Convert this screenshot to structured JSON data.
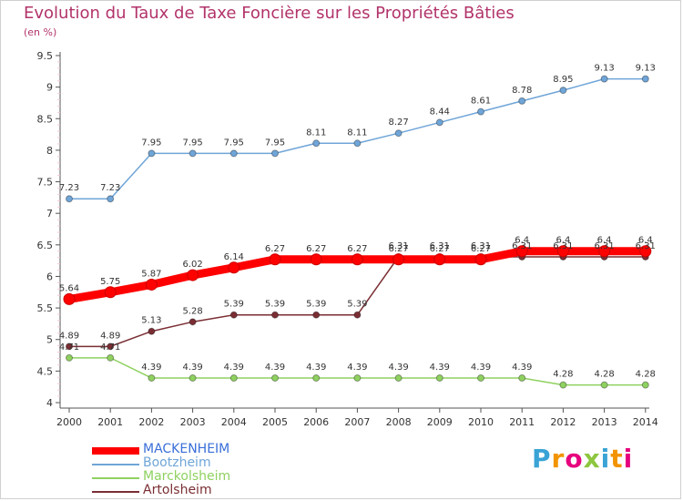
{
  "header": {
    "title": "Evolution du Taux de Taxe Foncière sur les Propriétés Bâties",
    "unit": "(en %)"
  },
  "logo": {
    "text": "Proxiti",
    "colors": [
      "#3aa3d6",
      "#f29400",
      "#e6007e",
      "#8dc63f",
      "#3aa3d6",
      "#f29400",
      "#e6007e"
    ]
  },
  "colors": {
    "title": "#b2336a",
    "axis": "#555555",
    "grid": "#f0c8d8"
  },
  "chart_data": {
    "type": "line",
    "title": "Evolution du Taux de Taxe Foncière sur les Propriétés Bâties",
    "ylabel": "(en %)",
    "xlabel": "",
    "x": [
      "2000",
      "2001",
      "2002",
      "2003",
      "2004",
      "2005",
      "2006",
      "2007",
      "2008",
      "2009",
      "2010",
      "2011",
      "2012",
      "2013",
      "2014"
    ],
    "ylim": [
      4,
      9.5
    ],
    "yticks": [
      "4",
      "4.5",
      "5",
      "5.5",
      "6",
      "6.5",
      "7",
      "7.5",
      "8",
      "8.5",
      "9",
      "9.5"
    ],
    "grid": false,
    "legend": "bottom-left",
    "series": [
      {
        "name": "MACKENHEIM",
        "color": "#ff0000",
        "values": [
          5.64,
          5.75,
          5.87,
          6.02,
          6.14,
          6.27,
          6.27,
          6.27,
          6.27,
          6.27,
          6.27,
          6.4,
          6.4,
          6.4,
          6.4
        ],
        "labels": [
          "5.64",
          "5.75",
          "5.87",
          "6.02",
          "6.14",
          "6.27",
          "6.27",
          "6.27",
          "6.27",
          "6.27",
          "6.27",
          "6.4",
          "6.4",
          "6.4",
          "6.4"
        ]
      },
      {
        "name": "Bootzheim",
        "color": "#6fa5d8",
        "values": [
          7.23,
          7.23,
          7.95,
          7.95,
          7.95,
          7.95,
          8.11,
          8.11,
          8.27,
          8.44,
          8.61,
          8.78,
          8.95,
          9.13,
          9.13
        ],
        "labels": [
          "7.23",
          "7.23",
          "7.95",
          "7.95",
          "7.95",
          "7.95",
          "8.11",
          "8.11",
          "8.27",
          "8.44",
          "8.61",
          "8.78",
          "8.95",
          "9.13",
          "9.13"
        ]
      },
      {
        "name": "Marckolsheim",
        "color": "#8fd160",
        "values": [
          4.71,
          4.71,
          4.39,
          4.39,
          4.39,
          4.39,
          4.39,
          4.39,
          4.39,
          4.39,
          4.39,
          4.39,
          4.28,
          4.28,
          4.28
        ],
        "labels": [
          "4.71",
          "4.71",
          "4.39",
          "4.39",
          "4.39",
          "4.39",
          "4.39",
          "4.39",
          "4.39",
          "4.39",
          "4.39",
          "4.39",
          "4.28",
          "4.28",
          "4.28"
        ]
      },
      {
        "name": "Artolsheim",
        "color": "#7a2e33",
        "values": [
          4.89,
          4.89,
          5.13,
          5.28,
          5.39,
          5.39,
          5.39,
          5.39,
          6.31,
          6.31,
          6.31,
          6.31,
          6.31,
          6.31,
          6.31
        ],
        "labels": [
          "4.89",
          "4.89",
          "5.13",
          "5.28",
          "5.39",
          "5.39",
          "5.39",
          "5.39",
          "6.31",
          "6.31",
          "6.31",
          "6.31",
          "6.31",
          "6.31",
          "6.31"
        ]
      }
    ]
  }
}
